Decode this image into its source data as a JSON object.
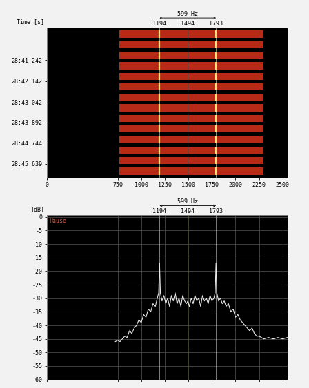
{
  "chart_data": [
    {
      "type": "spectrogram",
      "y_label": "Time [s]",
      "xlim": [
        0,
        2550
      ],
      "xticks": [
        0,
        750,
        1000,
        1250,
        1500,
        1750,
        2000,
        2250,
        2500
      ],
      "ylim": [
        1726.22,
        1719.87
      ],
      "yticks": [
        {
          "value": 1721.242,
          "label": "28:41.242"
        },
        {
          "value": 1722.142,
          "label": "28:42.142"
        },
        {
          "value": 1723.042,
          "label": "28:43.042"
        },
        {
          "value": 1723.892,
          "label": "28:43.892"
        },
        {
          "value": 1724.744,
          "label": "28:44.744"
        },
        {
          "value": 1725.639,
          "label": "28:45.639"
        }
      ],
      "band": [
        770,
        2300
      ],
      "pulses": [
        [
          1720.0,
          1720.3
        ],
        [
          1720.45,
          1720.75
        ],
        [
          1720.89,
          1721.19
        ],
        [
          1721.34,
          1721.64
        ],
        [
          1721.78,
          1722.08
        ],
        [
          1722.23,
          1722.53
        ],
        [
          1722.68,
          1722.98
        ],
        [
          1723.12,
          1723.42
        ],
        [
          1723.57,
          1723.87
        ],
        [
          1724.01,
          1724.31
        ],
        [
          1724.46,
          1724.76
        ],
        [
          1724.91,
          1725.21
        ],
        [
          1725.35,
          1725.65
        ],
        [
          1725.8,
          1726.1
        ]
      ],
      "carriers": [
        1194,
        1793
      ],
      "markers": [
        1194,
        1494,
        1793
      ],
      "span": {
        "label": "599 Hz",
        "from": 1194,
        "to": 1793
      },
      "color": "#b82a18",
      "carrier_color": "#ffe070"
    },
    {
      "type": "line",
      "y_label": "[dB]",
      "annotation": "Pause",
      "x": [
        725,
        750,
        775,
        800,
        825,
        850,
        875,
        900,
        925,
        950,
        975,
        1000,
        1025,
        1050,
        1075,
        1100,
        1125,
        1150,
        1170,
        1185,
        1194,
        1203,
        1220,
        1240,
        1260,
        1280,
        1300,
        1320,
        1340,
        1360,
        1380,
        1400,
        1420,
        1440,
        1460,
        1480,
        1494,
        1510,
        1530,
        1550,
        1570,
        1590,
        1610,
        1630,
        1650,
        1670,
        1690,
        1710,
        1730,
        1750,
        1770,
        1784,
        1793,
        1802,
        1820,
        1840,
        1860,
        1880,
        1900,
        1925,
        1950,
        1975,
        2000,
        2025,
        2050,
        2075,
        2100,
        2125,
        2150,
        2175,
        2200,
        2225,
        2250,
        2300,
        2350,
        2400,
        2450,
        2500,
        2550
      ],
      "values": [
        -46,
        -45.5,
        -46,
        -45,
        -44,
        -44.5,
        -42,
        -43,
        -41,
        -40,
        -38,
        -39,
        -36,
        -37,
        -34,
        -35,
        -32,
        -33,
        -30,
        -28,
        -17,
        -28,
        -31,
        -29,
        -32,
        -30,
        -33,
        -29,
        -31,
        -28,
        -32,
        -30,
        -33,
        -29,
        -31,
        -32,
        -31,
        -33,
        -30,
        -32,
        -29,
        -31,
        -30,
        -33,
        -29,
        -31,
        -30,
        -32,
        -29,
        -31,
        -30,
        -28,
        -17,
        -28,
        -31,
        -30,
        -32,
        -31,
        -33,
        -32,
        -35,
        -34,
        -37,
        -36,
        -38,
        -39,
        -40,
        -41,
        -42,
        -41,
        -43,
        -44,
        -44,
        -45,
        -44.5,
        -45,
        -44.5,
        -45,
        -44.5
      ],
      "xlim": [
        0,
        2550
      ],
      "xticks": [
        0,
        750,
        1000,
        1250,
        1500,
        1750,
        2000,
        2250,
        2500
      ],
      "ylim": [
        -60,
        0.6
      ],
      "yticks": [
        0,
        -5,
        -10,
        -15,
        -20,
        -25,
        -30,
        -35,
        -40,
        -45,
        -50,
        -55,
        -60
      ],
      "grid": true,
      "tick_labels": "y",
      "markers": [
        1194,
        1494,
        1793
      ],
      "span": {
        "label": "599 Hz",
        "from": 1194,
        "to": 1793
      },
      "color": "#e8e8e8"
    }
  ]
}
